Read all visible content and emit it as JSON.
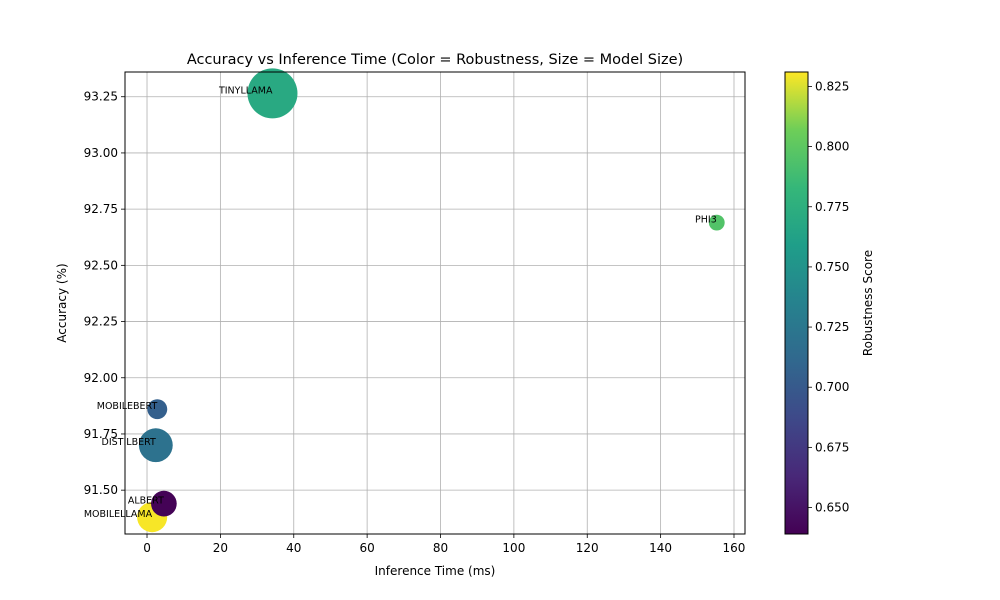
{
  "chart_data": {
    "type": "scatter",
    "title": "Accuracy vs Inference Time (Color = Robustness, Size = Model Size)",
    "xlabel": "Inference Time (ms)",
    "ylabel": "Accuracy (%)",
    "xlim": [
      -6,
      163
    ],
    "ylim": [
      91.305,
      93.36
    ],
    "xticks": [
      0,
      20,
      40,
      60,
      80,
      100,
      120,
      140,
      160
    ],
    "yticks": [
      91.5,
      91.75,
      92.0,
      92.25,
      92.5,
      92.75,
      93.0,
      93.25
    ],
    "xtick_labels": [
      "0",
      "20",
      "40",
      "60",
      "80",
      "100",
      "120",
      "140",
      "160"
    ],
    "ytick_labels": [
      "91.50",
      "91.75",
      "92.00",
      "92.25",
      "92.50",
      "92.75",
      "93.00",
      "93.25"
    ],
    "grid": true,
    "colorbar": {
      "label": "Robustness Score",
      "colormap": "viridis",
      "range": [
        0.639,
        0.831
      ],
      "ticks": [
        0.65,
        0.675,
        0.7,
        0.725,
        0.75,
        0.775,
        0.8,
        0.825
      ],
      "tick_labels": [
        "0.650",
        "0.675",
        "0.700",
        "0.725",
        "0.750",
        "0.775",
        "0.800",
        "0.825"
      ]
    },
    "points": [
      {
        "label": "TINYLLAMA",
        "x": 34.2,
        "y": 93.265,
        "robustness": 0.77,
        "size_rel": 1.0
      },
      {
        "label": "PHI3",
        "x": 155.3,
        "y": 92.69,
        "robustness": 0.795,
        "size_rel": 0.05
      },
      {
        "label": "MOBILEBERT",
        "x": 2.8,
        "y": 91.86,
        "robustness": 0.705,
        "size_rel": 0.1
      },
      {
        "label": "DISTILBERT",
        "x": 2.4,
        "y": 91.7,
        "robustness": 0.72,
        "size_rel": 0.4
      },
      {
        "label": "ALBERT",
        "x": 4.6,
        "y": 91.44,
        "robustness": 0.64,
        "size_rel": 0.2
      },
      {
        "label": "MOBILELLAMA",
        "x": 1.4,
        "y": 91.38,
        "robustness": 0.83,
        "size_rel": 0.3
      }
    ]
  }
}
